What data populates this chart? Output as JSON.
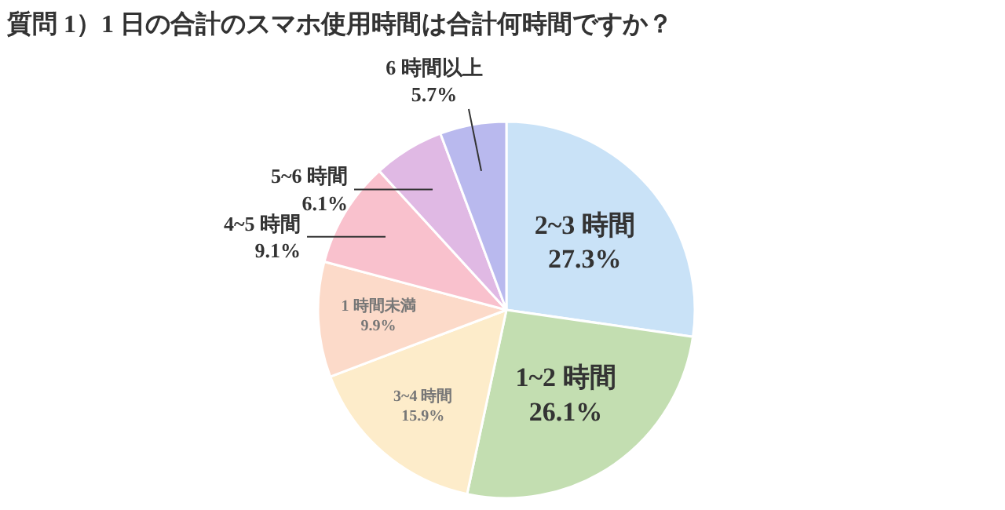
{
  "chart_data": {
    "type": "pie",
    "title": "質問 1）1 日の合計のスマホ使用時間は合計何時間ですか？",
    "categories": [
      "2~3 時間",
      "1~2 時間",
      "3~4 時間",
      "1 時間未満",
      "4~5 時間",
      "5~6 時間",
      "6 時間以上"
    ],
    "values": [
      27.3,
      26.1,
      15.9,
      9.9,
      9.1,
      6.1,
      5.7
    ],
    "colors": [
      "#c9e2f7",
      "#c3deb1",
      "#fdecca",
      "#fcdac9",
      "#f9c1cd",
      "#e0b9e4",
      "#b9b9ee"
    ],
    "value_labels": [
      "27.3%",
      "26.1%",
      "15.9%",
      "9.9%",
      "9.1%",
      "6.1%",
      "5.7%"
    ]
  }
}
